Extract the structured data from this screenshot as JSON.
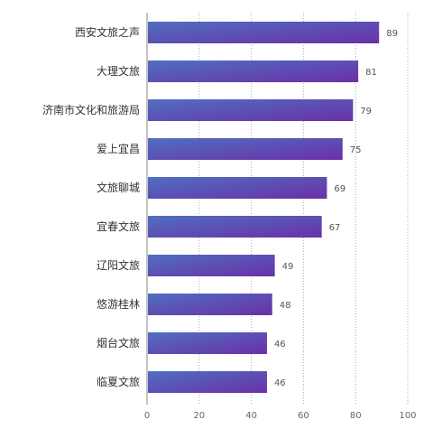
{
  "chart_data": {
    "type": "bar",
    "orientation": "horizontal",
    "categories": [
      "西安文旅之声",
      "大理文旅",
      "济南市文化和旅游局",
      "爱上宜昌",
      "文旅聊城",
      "宜春文旅",
      "辽阳文旅",
      "悠游桂林",
      "烟台文旅",
      "临夏文旅"
    ],
    "values": [
      89,
      81,
      79,
      75,
      69,
      67,
      49,
      48,
      46,
      46
    ],
    "xlim": [
      0,
      100
    ],
    "xticks": [
      0,
      20,
      40,
      60,
      80,
      100
    ],
    "grid": "vertical dotted",
    "colors": {
      "bar_start": "#4f6fc0",
      "bar_end": "#6a30a8",
      "axis": "#888888",
      "grid": "#aaaaaa"
    }
  }
}
